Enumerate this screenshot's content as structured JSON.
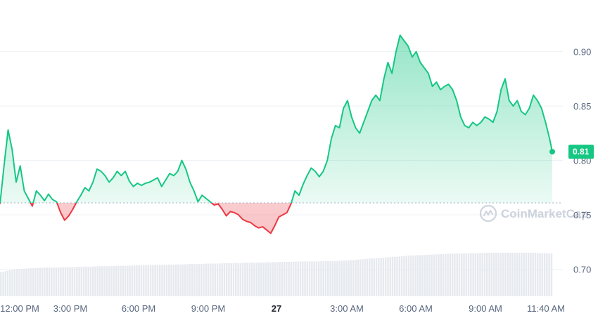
{
  "chart_data": {
    "type": "line",
    "y_axis": {
      "position": "right",
      "ylim": [
        0.68,
        0.95
      ],
      "ticks": [
        "0.90",
        "0.85",
        "0.80",
        "0.75",
        "0.70"
      ],
      "tick_values": [
        0.9,
        0.85,
        0.8,
        0.75,
        0.7
      ]
    },
    "x_axis": {
      "ticks": [
        "12:00 PM",
        "3:00 PM",
        "6:00 PM",
        "9:00 PM",
        "27",
        "3:00 AM",
        "6:00 AM",
        "9:00 AM",
        "11:40 AM"
      ],
      "bold_ticks": [
        "27"
      ]
    },
    "baseline_price": 0.761,
    "current_price_label": "0.81",
    "current_price": 0.808,
    "colors": {
      "up": "#16c784",
      "down": "#ea3943",
      "volume": "#e6e9ee",
      "badge": "#16c784"
    },
    "watermark": "CoinMarketCap",
    "price_series": [
      [
        0,
        0.76
      ],
      [
        1.5,
        0.795
      ],
      [
        3,
        0.828
      ],
      [
        4.5,
        0.81
      ],
      [
        6,
        0.78
      ],
      [
        7.5,
        0.795
      ],
      [
        9,
        0.772
      ],
      [
        10.5,
        0.765
      ],
      [
        12,
        0.758
      ],
      [
        13.5,
        0.772
      ],
      [
        15,
        0.768
      ],
      [
        16.5,
        0.763
      ],
      [
        18,
        0.769
      ],
      [
        19.5,
        0.764
      ],
      [
        21,
        0.762
      ],
      [
        22.5,
        0.752
      ],
      [
        24,
        0.745
      ],
      [
        25.5,
        0.749
      ],
      [
        27,
        0.755
      ],
      [
        28.5,
        0.762
      ],
      [
        30,
        0.768
      ],
      [
        31.5,
        0.775
      ],
      [
        33,
        0.772
      ],
      [
        34.5,
        0.78
      ],
      [
        36,
        0.792
      ],
      [
        37.5,
        0.79
      ],
      [
        39,
        0.786
      ],
      [
        40.5,
        0.78
      ],
      [
        42,
        0.784
      ],
      [
        43.5,
        0.79
      ],
      [
        45,
        0.786
      ],
      [
        46.5,
        0.79
      ],
      [
        48,
        0.781
      ],
      [
        49.5,
        0.776
      ],
      [
        51,
        0.779
      ],
      [
        52.5,
        0.777
      ],
      [
        54,
        0.779
      ],
      [
        55.5,
        0.78
      ],
      [
        57,
        0.782
      ],
      [
        58.5,
        0.784
      ],
      [
        60,
        0.776
      ],
      [
        61.5,
        0.782
      ],
      [
        63,
        0.788
      ],
      [
        64.5,
        0.786
      ],
      [
        66,
        0.79
      ],
      [
        67.5,
        0.8
      ],
      [
        69,
        0.792
      ],
      [
        70.5,
        0.78
      ],
      [
        72,
        0.772
      ],
      [
        73.5,
        0.762
      ],
      [
        75,
        0.768
      ],
      [
        76.5,
        0.765
      ],
      [
        78,
        0.762
      ],
      [
        79.5,
        0.759
      ],
      [
        81,
        0.76
      ],
      [
        82.5,
        0.755
      ],
      [
        84,
        0.749
      ],
      [
        85.5,
        0.753
      ],
      [
        87,
        0.752
      ],
      [
        88.5,
        0.75
      ],
      [
        90,
        0.746
      ],
      [
        91.5,
        0.744
      ],
      [
        93,
        0.743
      ],
      [
        94.5,
        0.74
      ],
      [
        96,
        0.738
      ],
      [
        97.5,
        0.739
      ],
      [
        99,
        0.736
      ],
      [
        100.5,
        0.733
      ],
      [
        102,
        0.74
      ],
      [
        103.5,
        0.748
      ],
      [
        105,
        0.75
      ],
      [
        106.5,
        0.752
      ],
      [
        108,
        0.76
      ],
      [
        109.5,
        0.772
      ],
      [
        111,
        0.768
      ],
      [
        112.5,
        0.778
      ],
      [
        114,
        0.786
      ],
      [
        115.5,
        0.793
      ],
      [
        117,
        0.79
      ],
      [
        118.5,
        0.785
      ],
      [
        120,
        0.79
      ],
      [
        121.5,
        0.8
      ],
      [
        123,
        0.82
      ],
      [
        124.5,
        0.832
      ],
      [
        126,
        0.83
      ],
      [
        127.5,
        0.848
      ],
      [
        129,
        0.855
      ],
      [
        130.5,
        0.84
      ],
      [
        132,
        0.83
      ],
      [
        133.5,
        0.825
      ],
      [
        135,
        0.835
      ],
      [
        136.5,
        0.845
      ],
      [
        138,
        0.855
      ],
      [
        139.5,
        0.86
      ],
      [
        141,
        0.855
      ],
      [
        142.5,
        0.875
      ],
      [
        144,
        0.89
      ],
      [
        145.5,
        0.88
      ],
      [
        147,
        0.9
      ],
      [
        148.5,
        0.915
      ],
      [
        150,
        0.91
      ],
      [
        151.5,
        0.905
      ],
      [
        153,
        0.895
      ],
      [
        154.5,
        0.9
      ],
      [
        156,
        0.89
      ],
      [
        157.5,
        0.885
      ],
      [
        159,
        0.88
      ],
      [
        160.5,
        0.868
      ],
      [
        162,
        0.872
      ],
      [
        163.5,
        0.865
      ],
      [
        165,
        0.868
      ],
      [
        166.5,
        0.87
      ],
      [
        168,
        0.865
      ],
      [
        169.5,
        0.855
      ],
      [
        171,
        0.84
      ],
      [
        172.5,
        0.832
      ],
      [
        174,
        0.83
      ],
      [
        175.5,
        0.835
      ],
      [
        177,
        0.832
      ],
      [
        178.5,
        0.835
      ],
      [
        180,
        0.84
      ],
      [
        181.5,
        0.838
      ],
      [
        183,
        0.835
      ],
      [
        184.5,
        0.845
      ],
      [
        186,
        0.865
      ],
      [
        187.5,
        0.875
      ],
      [
        189,
        0.855
      ],
      [
        190.5,
        0.85
      ],
      [
        192,
        0.855
      ],
      [
        193.5,
        0.845
      ],
      [
        195,
        0.842
      ],
      [
        196.5,
        0.848
      ],
      [
        198,
        0.86
      ],
      [
        199.5,
        0.855
      ],
      [
        201,
        0.848
      ],
      [
        202.5,
        0.835
      ],
      [
        204,
        0.82
      ],
      [
        205,
        0.808
      ]
    ],
    "volume_series": [
      0.55,
      0.6,
      0.62,
      0.64,
      0.65,
      0.66,
      0.66,
      0.67,
      0.67,
      0.68,
      0.68,
      0.69,
      0.69,
      0.7,
      0.7,
      0.71,
      0.71,
      0.72,
      0.72,
      0.73,
      0.73,
      0.74,
      0.74,
      0.75,
      0.75,
      0.76,
      0.76,
      0.77,
      0.77,
      0.78,
      0.78,
      0.79,
      0.79,
      0.8,
      0.8,
      0.8,
      0.81,
      0.81,
      0.82,
      0.83,
      0.85,
      0.87,
      0.88,
      0.9,
      0.91,
      0.93,
      0.94,
      0.95,
      0.96,
      0.97,
      0.98,
      0.98,
      0.99,
      0.99,
      1.0,
      1.0,
      1.0,
      1.0,
      1.0,
      1.0,
      0.99,
      0.98
    ]
  }
}
